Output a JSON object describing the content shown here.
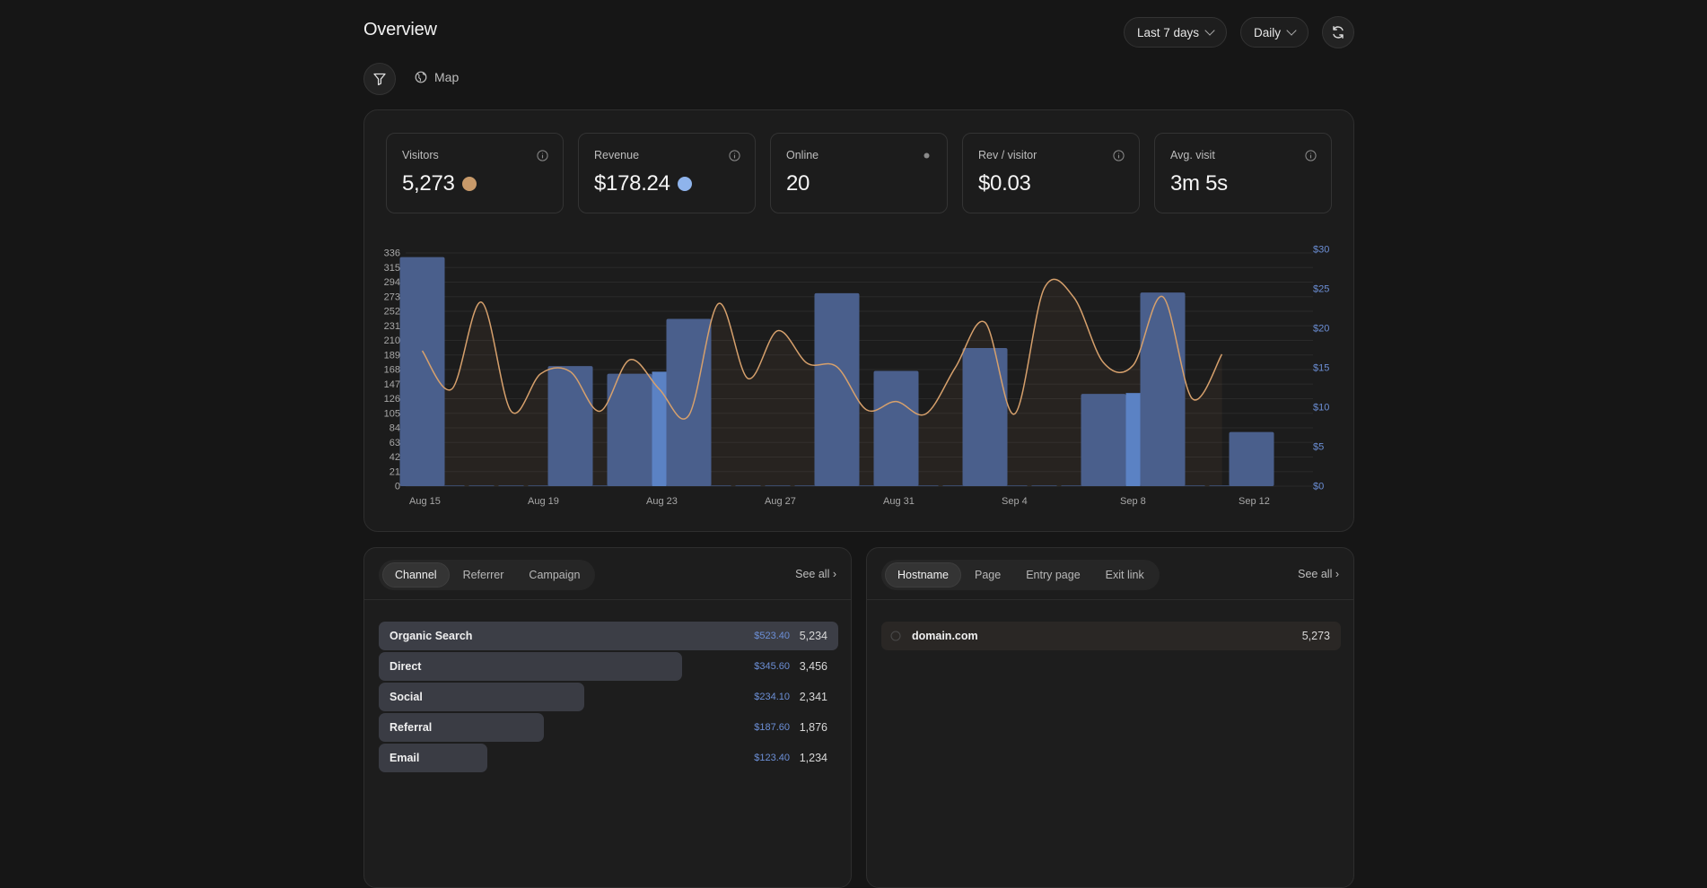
{
  "header": {
    "title": "Overview",
    "range_label": "Last 7 days",
    "interval_label": "Daily",
    "map_label": "Map"
  },
  "stats": [
    {
      "label": "Visitors",
      "value": "5,273",
      "dot_color": "#c89a6a",
      "indicator": "info-icon"
    },
    {
      "label": "Revenue",
      "value": "$178.24",
      "dot_color": "#8fb4ec",
      "indicator": "info-icon"
    },
    {
      "label": "Online",
      "value": "20",
      "dot_color": "",
      "indicator": "status-dot"
    },
    {
      "label": "Rev / visitor",
      "value": "$0.03",
      "dot_color": "",
      "indicator": "info-icon"
    },
    {
      "label": "Avg. visit",
      "value": "3m 5s",
      "dot_color": "",
      "indicator": "info-icon"
    }
  ],
  "chart_data": {
    "type": "bar",
    "x_tick_labels": [
      "Aug 15",
      "Aug 19",
      "Aug 23",
      "Aug 27",
      "Aug 31",
      "Sep 4",
      "Sep 8",
      "Sep 12"
    ],
    "y_ticks": [
      "0",
      "21",
      "42",
      "63",
      "84",
      "105",
      "126",
      "147",
      "168",
      "189",
      "210",
      "231",
      "252",
      "273",
      "294",
      "315",
      "336"
    ],
    "y2_ticks": [
      "$0",
      "$5",
      "$10",
      "$15",
      "$20",
      "$25",
      "$30"
    ],
    "ylim": [
      0,
      336
    ],
    "y2lim": [
      0,
      30
    ],
    "grid": true,
    "colors": {
      "visitors_bar": "#4a5f8c",
      "revenue_bar": "#5b82c4",
      "visitors_line": "#d6a06c"
    },
    "visitor_bars": [
      {
        "x": 15,
        "value": 330
      },
      {
        "x": 20,
        "value": 173
      },
      {
        "x": 22,
        "value": 162
      },
      {
        "x": 24,
        "value": 241
      },
      {
        "x": 29,
        "value": 278
      },
      {
        "x": 31,
        "value": 166
      },
      {
        "x": 34,
        "value": 199
      },
      {
        "x": 38,
        "value": 133
      },
      {
        "x": 40,
        "value": 279
      },
      {
        "x": 43,
        "value": 78
      }
    ],
    "revenue_bars": [
      {
        "x": 23,
        "value": 14.5
      },
      {
        "x": 39,
        "value": 11.8
      }
    ],
    "line_values": [
      {
        "x": 15,
        "value": 195
      },
      {
        "x": 16,
        "value": 140
      },
      {
        "x": 17,
        "value": 265
      },
      {
        "x": 18,
        "value": 108
      },
      {
        "x": 19,
        "value": 162
      },
      {
        "x": 20,
        "value": 165
      },
      {
        "x": 21,
        "value": 108
      },
      {
        "x": 22,
        "value": 182
      },
      {
        "x": 23,
        "value": 140
      },
      {
        "x": 24,
        "value": 102
      },
      {
        "x": 25,
        "value": 263
      },
      {
        "x": 26,
        "value": 155
      },
      {
        "x": 27,
        "value": 224
      },
      {
        "x": 28,
        "value": 177
      },
      {
        "x": 29,
        "value": 172
      },
      {
        "x": 30,
        "value": 110
      },
      {
        "x": 31,
        "value": 122
      },
      {
        "x": 32,
        "value": 104
      },
      {
        "x": 33,
        "value": 171
      },
      {
        "x": 34,
        "value": 236
      },
      {
        "x": 35,
        "value": 104
      },
      {
        "x": 36,
        "value": 285
      },
      {
        "x": 37,
        "value": 272
      },
      {
        "x": 38,
        "value": 178
      },
      {
        "x": 39,
        "value": 174
      },
      {
        "x": 40,
        "value": 273
      },
      {
        "x": 41,
        "value": 126
      },
      {
        "x": 42,
        "value": 190
      }
    ]
  },
  "left_list": {
    "tabs": [
      "Channel",
      "Referrer",
      "Campaign"
    ],
    "active_tab": "Channel",
    "see_all": "See all ›",
    "max_count": 5234,
    "rows": [
      {
        "name": "Organic Search",
        "revenue": "$523.40",
        "count": "5,234",
        "count_num": 5234
      },
      {
        "name": "Direct",
        "revenue": "$345.60",
        "count": "3,456",
        "count_num": 3456
      },
      {
        "name": "Social",
        "revenue": "$234.10",
        "count": "2,341",
        "count_num": 2341
      },
      {
        "name": "Referral",
        "revenue": "$187.60",
        "count": "1,876",
        "count_num": 1876
      },
      {
        "name": "Email",
        "revenue": "$123.40",
        "count": "1,234",
        "count_num": 1234
      }
    ]
  },
  "right_list": {
    "tabs": [
      "Hostname",
      "Page",
      "Entry page",
      "Exit link"
    ],
    "active_tab": "Hostname",
    "see_all": "See all ›",
    "rows": [
      {
        "name": "domain.com",
        "count": "5,273",
        "icon": "globe-icon"
      }
    ]
  }
}
